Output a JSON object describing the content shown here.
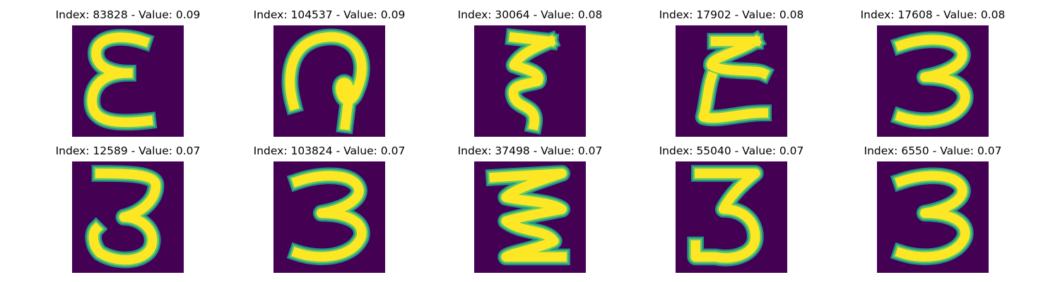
{
  "colors": {
    "background": "#440154",
    "stroke_core": "#fde725",
    "stroke_mid": "#5ec962",
    "stroke_edge": "#21918c"
  },
  "panels": [
    {
      "title": "Index: 83828 - Value: 0.09",
      "index": 83828,
      "value": 0.09,
      "glyph": "epsilon"
    },
    {
      "title": "Index: 104537 - Value: 0.09",
      "index": 104537,
      "value": 0.09,
      "glyph": "loop-hook"
    },
    {
      "title": "Index: 30064 - Value: 0.08",
      "index": 30064,
      "value": 0.08,
      "glyph": "squiggle-3"
    },
    {
      "title": "Index: 17902 - Value: 0.08",
      "index": 17902,
      "value": 0.08,
      "glyph": "z-squiggle"
    },
    {
      "title": "Index: 17608 - Value: 0.08",
      "index": 17608,
      "value": 0.08,
      "glyph": "three"
    },
    {
      "title": "Index: 12589 - Value: 0.07",
      "index": 12589,
      "value": 0.07,
      "glyph": "three-open"
    },
    {
      "title": "Index: 103824 - Value: 0.07",
      "index": 103824,
      "value": 0.07,
      "glyph": "three"
    },
    {
      "title": "Index: 37498 - Value: 0.07",
      "index": 37498,
      "value": 0.07,
      "glyph": "zigzag"
    },
    {
      "title": "Index: 55040 - Value: 0.07",
      "index": 55040,
      "value": 0.07,
      "glyph": "three-hook"
    },
    {
      "title": "Index: 6550 - Value: 0.07",
      "index": 6550,
      "value": 0.07,
      "glyph": "three"
    }
  ]
}
